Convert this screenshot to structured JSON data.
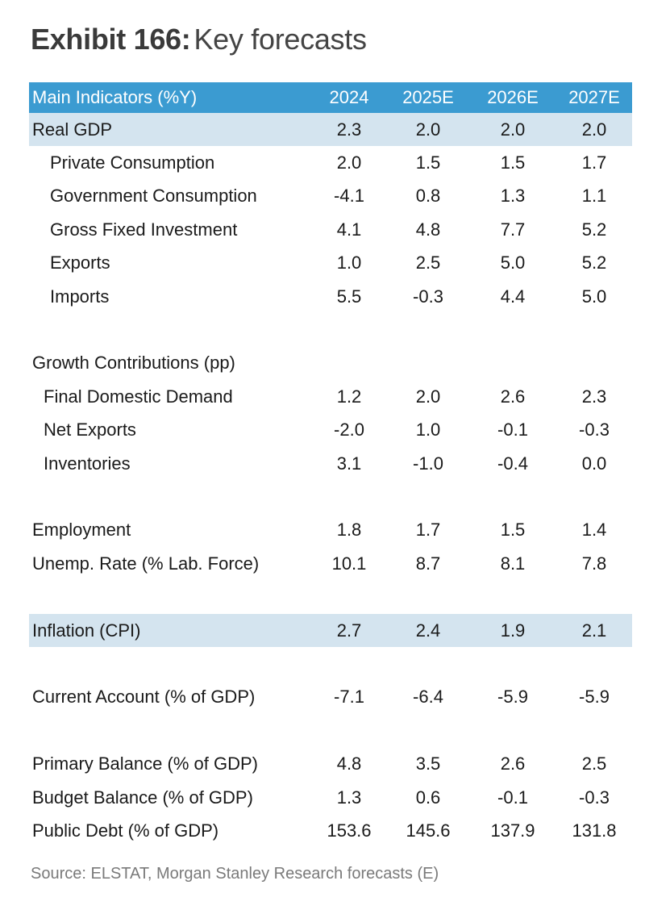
{
  "title": {
    "lead": "Exhibit 166:",
    "rest": "Key forecasts"
  },
  "header": {
    "label": "Main Indicators (%Y)",
    "years": [
      "2024",
      "2025E",
      "2026E",
      "2027E"
    ]
  },
  "rows": [
    {
      "label": "Real GDP",
      "values": [
        "2.3",
        "2.0",
        "2.0",
        "2.0"
      ]
    },
    {
      "label": "Private Consumption",
      "values": [
        "2.0",
        "1.5",
        "1.5",
        "1.7"
      ]
    },
    {
      "label": "Government Consumption",
      "values": [
        "-4.1",
        "0.8",
        "1.3",
        "1.1"
      ]
    },
    {
      "label": "Gross Fixed Investment",
      "values": [
        "4.1",
        "4.8",
        "7.7",
        "5.2"
      ]
    },
    {
      "label": "Exports",
      "values": [
        "1.0",
        "2.5",
        "5.0",
        "5.2"
      ]
    },
    {
      "label": "Imports",
      "values": [
        "5.5",
        "-0.3",
        "4.4",
        "5.0"
      ]
    },
    {
      "label": "Growth Contributions (pp)",
      "values": [
        "",
        "",
        "",
        ""
      ]
    },
    {
      "label": "Final Domestic Demand",
      "values": [
        "1.2",
        "2.0",
        "2.6",
        "2.3"
      ]
    },
    {
      "label": "Net Exports",
      "values": [
        "-2.0",
        "1.0",
        "-0.1",
        "-0.3"
      ]
    },
    {
      "label": "Inventories",
      "values": [
        "3.1",
        "-1.0",
        "-0.4",
        "0.0"
      ]
    },
    {
      "label": "Employment",
      "values": [
        "1.8",
        "1.7",
        "1.5",
        "1.4"
      ]
    },
    {
      "label": "Unemp. Rate (% Lab. Force)",
      "values": [
        "10.1",
        "8.7",
        "8.1",
        "7.8"
      ]
    },
    {
      "label": "Inflation (CPI)",
      "values": [
        "2.7",
        "2.4",
        "1.9",
        "2.1"
      ]
    },
    {
      "label": "Current Account (% of GDP)",
      "values": [
        "-7.1",
        "-6.4",
        "-5.9",
        "-5.9"
      ]
    },
    {
      "label": "Primary Balance (% of GDP)",
      "values": [
        "4.8",
        "3.5",
        "2.6",
        "2.5"
      ]
    },
    {
      "label": "Budget Balance (% of GDP)",
      "values": [
        "1.3",
        "0.6",
        "-0.1",
        "-0.3"
      ]
    },
    {
      "label": "Public Debt (% of GDP)",
      "values": [
        "153.6",
        "145.6",
        "137.9",
        "131.8"
      ]
    }
  ],
  "source": "Source: ELSTAT, Morgan Stanley Research forecasts (E)"
}
